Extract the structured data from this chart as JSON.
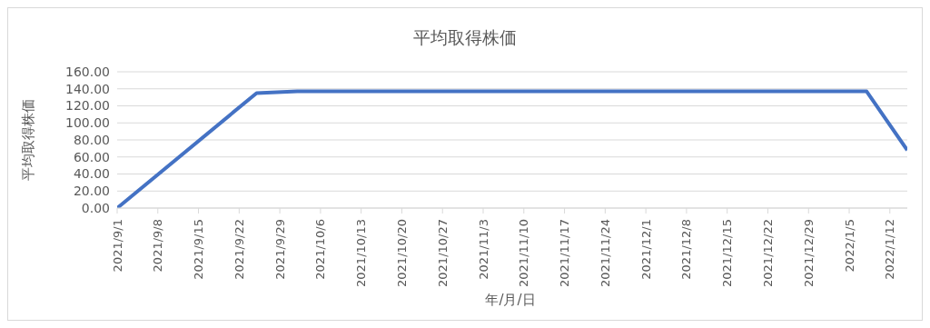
{
  "chart_data": {
    "type": "line",
    "title": "平均取得株価",
    "xlabel": "年/月/日",
    "ylabel": "平均取得株価",
    "x": [
      "2021-09-01",
      "2021-09-25",
      "2021-10-02",
      "2022-01-08",
      "2022-01-15"
    ],
    "series": [
      {
        "color": "#4472c4",
        "values": [
          0,
          135,
          137,
          137,
          68
        ]
      }
    ],
    "xlim": [
      "2021-09-01",
      "2022-01-15"
    ],
    "xticks": [
      {
        "value": "2021-09-01",
        "label": "2021/9/1"
      },
      {
        "value": "2021-09-08",
        "label": "2021/9/8"
      },
      {
        "value": "2021-09-15",
        "label": "2021/9/15"
      },
      {
        "value": "2021-09-22",
        "label": "2021/9/22"
      },
      {
        "value": "2021-09-29",
        "label": "2021/9/29"
      },
      {
        "value": "2021-10-06",
        "label": "2021/10/6"
      },
      {
        "value": "2021-10-13",
        "label": "2021/10/13"
      },
      {
        "value": "2021-10-20",
        "label": "2021/10/20"
      },
      {
        "value": "2021-10-27",
        "label": "2021/10/27"
      },
      {
        "value": "2021-11-03",
        "label": "2021/11/3"
      },
      {
        "value": "2021-11-10",
        "label": "2021/11/10"
      },
      {
        "value": "2021-11-17",
        "label": "2021/11/17"
      },
      {
        "value": "2021-11-24",
        "label": "2021/11/24"
      },
      {
        "value": "2021-12-01",
        "label": "2021/12/1"
      },
      {
        "value": "2021-12-08",
        "label": "2021/12/8"
      },
      {
        "value": "2021-12-15",
        "label": "2021/12/15"
      },
      {
        "value": "2021-12-22",
        "label": "2021/12/22"
      },
      {
        "value": "2021-12-29",
        "label": "2021/12/29"
      },
      {
        "value": "2022-01-05",
        "label": "2022/1/5"
      },
      {
        "value": "2022-01-12",
        "label": "2022/1/12"
      }
    ],
    "ylim": [
      0,
      160
    ],
    "yticks": [
      {
        "value": 0,
        "label": "0.00"
      },
      {
        "value": 20,
        "label": "20.00"
      },
      {
        "value": 40,
        "label": "40.00"
      },
      {
        "value": 60,
        "label": "60.00"
      },
      {
        "value": 80,
        "label": "80.00"
      },
      {
        "value": 100,
        "label": "100.00"
      },
      {
        "value": 120,
        "label": "120.00"
      },
      {
        "value": 140,
        "label": "140.00"
      },
      {
        "value": 160,
        "label": "160.00"
      }
    ],
    "grid": "y",
    "marker": "none",
    "line_style": "solid",
    "legend": false
  }
}
